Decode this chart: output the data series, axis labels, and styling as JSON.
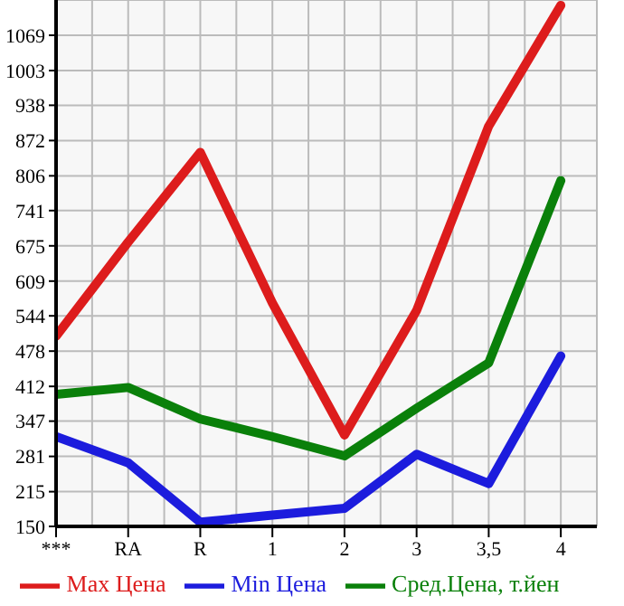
{
  "chart_data": {
    "type": "line",
    "categories": [
      "***",
      "RA",
      "R",
      "1",
      "2",
      "3",
      "3,5",
      "4"
    ],
    "series": [
      {
        "name": "Max Цена",
        "color": "#dd1c1c",
        "values": [
          506,
          682,
          850,
          568,
          321,
          554,
          899,
          1125
        ]
      },
      {
        "name": "Min Цена",
        "color": "#1c1cdd",
        "values": [
          318,
          269,
          158,
          171,
          184,
          285,
          230,
          469
        ]
      },
      {
        "name": "Сред.Цена, т.йен",
        "color": "#0a800a",
        "values": [
          397,
          410,
          351,
          318,
          282,
          371,
          456,
          797
        ]
      }
    ],
    "ylim": [
      150,
      1135
    ],
    "yticks": [
      150,
      215,
      281,
      347,
      412,
      478,
      544,
      609,
      675,
      741,
      806,
      872,
      938,
      1003,
      1069
    ],
    "grid": true,
    "legend": "bottom",
    "marker": "none",
    "line_style": "solid"
  }
}
